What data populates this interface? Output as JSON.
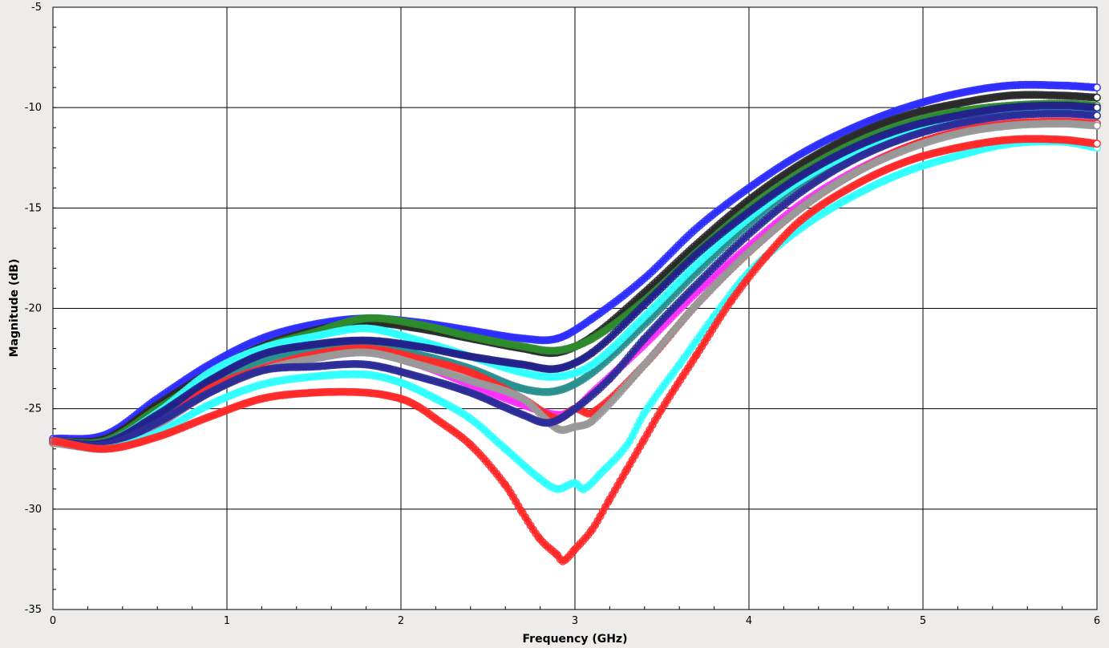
{
  "chart_data": {
    "type": "line",
    "title": "",
    "xlabel": "Frequency (GHz)",
    "ylabel": "Magnitude (dB)",
    "xlim": [
      0,
      6
    ],
    "ylim": [
      -35,
      -5
    ],
    "x_ticks": [
      0,
      1,
      2,
      3,
      4,
      5,
      6
    ],
    "y_ticks": [
      -35,
      -30,
      -25,
      -20,
      -15,
      -10,
      -5
    ],
    "grid": true,
    "legend": "none",
    "marker": "circle",
    "series": [
      {
        "color": "#2f2fff",
        "x": [
          0,
          0.3,
          0.6,
          0.9,
          1.2,
          1.5,
          1.8,
          2.1,
          2.4,
          2.7,
          2.9,
          3.1,
          3.4,
          3.7,
          4.0,
          4.3,
          4.6,
          4.9,
          5.2,
          5.5,
          5.8,
          6.0
        ],
        "y": [
          -26.5,
          -26.3,
          -24.5,
          -22.8,
          -21.5,
          -20.8,
          -20.5,
          -20.7,
          -21.1,
          -21.5,
          -21.5,
          -20.5,
          -18.5,
          -16.0,
          -14.0,
          -12.3,
          -11.0,
          -10.0,
          -9.3,
          -8.9,
          -8.9,
          -9.0
        ]
      },
      {
        "color": "#2b2b2b",
        "x": [
          0,
          0.3,
          0.6,
          0.9,
          1.2,
          1.5,
          1.8,
          2.1,
          2.4,
          2.7,
          2.9,
          3.1,
          3.4,
          3.7,
          4.0,
          4.3,
          4.6,
          4.9,
          5.2,
          5.5,
          5.8,
          6.0
        ],
        "y": [
          -26.6,
          -26.5,
          -24.8,
          -23.2,
          -21.9,
          -21.1,
          -20.7,
          -21.0,
          -21.5,
          -22.0,
          -22.2,
          -21.4,
          -19.2,
          -16.8,
          -14.6,
          -12.8,
          -11.4,
          -10.4,
          -9.8,
          -9.4,
          -9.4,
          -9.5
        ]
      },
      {
        "color": "#2e8b2e",
        "x": [
          0,
          0.3,
          0.6,
          0.9,
          1.2,
          1.5,
          1.8,
          2.1,
          2.4,
          2.7,
          2.9,
          3.1,
          3.4,
          3.7,
          4.0,
          4.3,
          4.6,
          4.9,
          5.2,
          5.5,
          5.8,
          6.0
        ],
        "y": [
          -26.6,
          -26.6,
          -25.0,
          -23.4,
          -22.0,
          -21.2,
          -20.5,
          -20.8,
          -21.4,
          -21.9,
          -22.1,
          -21.5,
          -19.6,
          -17.2,
          -15.0,
          -13.2,
          -11.8,
          -10.8,
          -10.2,
          -9.9,
          -9.8,
          -9.9
        ]
      },
      {
        "color": "#2a9090",
        "x": [
          0,
          0.3,
          0.6,
          0.9,
          1.2,
          1.5,
          1.8,
          2.1,
          2.4,
          2.7,
          2.9,
          3.1,
          3.4,
          3.7,
          4.0,
          4.3,
          4.6,
          4.9,
          5.2,
          5.5,
          5.8,
          6.0
        ],
        "y": [
          -26.7,
          -26.8,
          -25.5,
          -23.8,
          -22.6,
          -22.0,
          -21.8,
          -22.3,
          -23.0,
          -24.0,
          -24.1,
          -23.2,
          -20.8,
          -18.2,
          -15.8,
          -13.8,
          -12.3,
          -11.2,
          -10.5,
          -10.1,
          -10.0,
          -10.1
        ]
      },
      {
        "color": "#33ffff",
        "x": [
          0,
          0.3,
          0.6,
          0.9,
          1.2,
          1.5,
          1.8,
          2.1,
          2.4,
          2.7,
          2.9,
          3.1,
          3.4,
          3.7,
          4.0,
          4.3,
          4.6,
          4.9,
          5.2,
          5.5,
          5.8,
          6.0
        ],
        "y": [
          -26.6,
          -26.7,
          -25.2,
          -23.2,
          -22.0,
          -21.4,
          -21.0,
          -21.6,
          -22.4,
          -23.2,
          -23.4,
          -22.8,
          -20.4,
          -17.8,
          -15.5,
          -13.6,
          -12.2,
          -11.2,
          -10.6,
          -10.3,
          -10.2,
          -10.4
        ]
      },
      {
        "color": "#22228a",
        "x": [
          0,
          0.3,
          0.6,
          0.9,
          1.2,
          1.5,
          1.8,
          2.1,
          2.4,
          2.7,
          2.9,
          3.1,
          3.4,
          3.7,
          4.0,
          4.3,
          4.6,
          4.9,
          5.2,
          5.5,
          5.8,
          6.0
        ],
        "y": [
          -26.6,
          -26.7,
          -25.3,
          -23.6,
          -22.3,
          -21.8,
          -21.6,
          -21.9,
          -22.4,
          -22.8,
          -23.0,
          -22.2,
          -19.8,
          -17.3,
          -15.2,
          -13.4,
          -12.0,
          -11.0,
          -10.4,
          -10.0,
          -9.9,
          -10.0
        ]
      },
      {
        "color": "#ff30ff",
        "x": [
          0,
          0.3,
          0.6,
          0.9,
          1.2,
          1.5,
          1.8,
          2.1,
          2.4,
          2.7,
          2.9,
          3.0,
          3.1,
          3.4,
          3.7,
          4.0,
          4.3,
          4.6,
          4.9,
          5.2,
          5.5,
          5.8,
          6.0
        ],
        "y": [
          -26.7,
          -26.9,
          -25.8,
          -24.2,
          -23.1,
          -22.5,
          -22.2,
          -22.8,
          -23.8,
          -24.8,
          -25.3,
          -25.0,
          -24.2,
          -21.8,
          -19.2,
          -16.9,
          -14.8,
          -13.2,
          -12.0,
          -11.2,
          -10.8,
          -10.7,
          -10.8
        ]
      },
      {
        "color": "#ff2a2a",
        "x": [
          0,
          0.3,
          0.6,
          0.9,
          1.2,
          1.5,
          1.8,
          2.1,
          2.4,
          2.7,
          2.9,
          3.0,
          3.1,
          3.4,
          3.7,
          4.0,
          4.3,
          4.6,
          4.9,
          5.2,
          5.5,
          5.8,
          6.0
        ],
        "y": [
          -26.7,
          -26.9,
          -25.8,
          -24.0,
          -23.0,
          -22.3,
          -22.0,
          -22.5,
          -23.2,
          -24.5,
          -25.5,
          -25.0,
          -25.2,
          -22.8,
          -19.8,
          -17.2,
          -15.0,
          -13.3,
          -12.0,
          -11.2,
          -10.8,
          -10.7,
          -10.8
        ]
      },
      {
        "color": "#999999",
        "x": [
          0,
          0.3,
          0.6,
          0.9,
          1.2,
          1.5,
          1.8,
          2.1,
          2.4,
          2.7,
          2.9,
          3.0,
          3.1,
          3.4,
          3.7,
          4.0,
          4.3,
          4.6,
          4.9,
          5.2,
          5.5,
          5.8,
          6.0
        ],
        "y": [
          -26.7,
          -26.9,
          -25.8,
          -24.2,
          -23.1,
          -22.5,
          -22.2,
          -22.8,
          -23.6,
          -24.5,
          -26.0,
          -25.9,
          -25.6,
          -22.8,
          -19.8,
          -17.2,
          -15.0,
          -13.3,
          -12.1,
          -11.3,
          -10.9,
          -10.8,
          -10.9
        ]
      },
      {
        "color": "#2e2e9a",
        "x": [
          0,
          0.3,
          0.6,
          0.9,
          1.2,
          1.5,
          1.8,
          2.1,
          2.4,
          2.7,
          2.85,
          3.0,
          3.2,
          3.4,
          3.7,
          4.0,
          4.3,
          4.6,
          4.9,
          5.2,
          5.5,
          5.8,
          6.0
        ],
        "y": [
          -26.6,
          -26.8,
          -25.7,
          -24.2,
          -23.1,
          -22.9,
          -22.8,
          -23.4,
          -24.2,
          -25.3,
          -25.7,
          -25.0,
          -23.5,
          -21.5,
          -18.8,
          -16.3,
          -14.2,
          -12.6,
          -11.5,
          -10.8,
          -10.4,
          -10.3,
          -10.4
        ]
      },
      {
        "color": "#33ffff",
        "x": [
          0,
          0.3,
          0.6,
          0.9,
          1.2,
          1.5,
          1.8,
          2.0,
          2.2,
          2.4,
          2.6,
          2.8,
          2.9,
          3.0,
          3.05,
          3.15,
          3.3,
          3.4,
          3.6,
          3.8,
          4.0,
          4.3,
          4.6,
          4.9,
          5.2,
          5.5,
          5.8,
          6.0
        ],
        "y": [
          -26.6,
          -27.0,
          -26.2,
          -24.8,
          -23.8,
          -23.4,
          -23.3,
          -23.7,
          -24.5,
          -25.5,
          -27.0,
          -28.5,
          -29.0,
          -28.7,
          -29.0,
          -28.2,
          -26.8,
          -25.2,
          -22.8,
          -20.4,
          -18.2,
          -16.0,
          -14.4,
          -13.2,
          -12.4,
          -11.8,
          -11.7,
          -12.0
        ]
      },
      {
        "color": "#ff2a2a",
        "x": [
          0,
          0.3,
          0.6,
          0.9,
          1.2,
          1.5,
          1.8,
          2.0,
          2.1,
          2.2,
          2.4,
          2.6,
          2.7,
          2.8,
          2.9,
          2.93,
          3.0,
          3.1,
          3.2,
          3.3,
          3.4,
          3.5,
          3.7,
          3.9,
          4.1,
          4.3,
          4.6,
          4.9,
          5.2,
          5.5,
          5.8,
          6.0
        ],
        "y": [
          -26.6,
          -27.0,
          -26.4,
          -25.4,
          -24.5,
          -24.2,
          -24.2,
          -24.5,
          -24.9,
          -25.5,
          -26.8,
          -28.8,
          -30.2,
          -31.5,
          -32.3,
          -32.6,
          -32.0,
          -31.0,
          -29.5,
          -28.0,
          -26.5,
          -25.0,
          -22.3,
          -19.6,
          -17.4,
          -15.6,
          -13.9,
          -12.7,
          -12.0,
          -11.6,
          -11.6,
          -11.8
        ]
      }
    ]
  }
}
